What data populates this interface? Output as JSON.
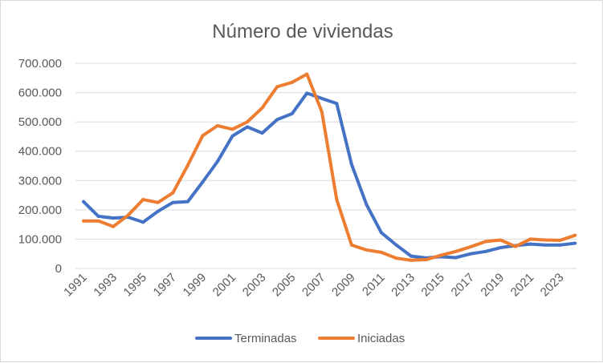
{
  "chart_data": {
    "type": "line",
    "title": "Número de viviendas",
    "xlabel": "",
    "ylabel": "",
    "x": [
      1991,
      1992,
      1993,
      1994,
      1995,
      1996,
      1997,
      1998,
      1999,
      2000,
      2001,
      2002,
      2003,
      2004,
      2005,
      2006,
      2007,
      2008,
      2009,
      2010,
      2011,
      2012,
      2013,
      2014,
      2015,
      2016,
      2017,
      2018,
      2019,
      2020,
      2021,
      2022,
      2023,
      2024
    ],
    "x_tick_labels": [
      "1991",
      "1993",
      "1995",
      "1997",
      "1999",
      "2001",
      "2003",
      "2005",
      "2007",
      "2009",
      "2011",
      "2013",
      "2015",
      "2017",
      "2019",
      "2021",
      "2023"
    ],
    "ylim": [
      0,
      700000
    ],
    "y_ticks": [
      0,
      100000,
      200000,
      300000,
      400000,
      500000,
      600000,
      700000
    ],
    "y_tick_labels": [
      "0",
      "100.000",
      "200.000",
      "300.000",
      "400.000",
      "500.000",
      "600.000",
      "700.000"
    ],
    "grid": true,
    "legend_position": "bottom",
    "series": [
      {
        "name": "Terminadas",
        "color": "#4472c4",
        "values": [
          228000,
          178000,
          172000,
          175000,
          158000,
          195000,
          225000,
          228000,
          295000,
          365000,
          452000,
          483000,
          462000,
          508000,
          528000,
          598000,
          580000,
          563000,
          355000,
          218000,
          122000,
          80000,
          42000,
          36000,
          40000,
          37000,
          50000,
          58000,
          71000,
          78000,
          83000,
          80000,
          80000,
          86000
        ]
      },
      {
        "name": "Iniciadas",
        "color": "#ed7d31",
        "values": [
          162000,
          162000,
          143000,
          182000,
          235000,
          225000,
          258000,
          352000,
          453000,
          487000,
          475000,
          500000,
          548000,
          620000,
          635000,
          663000,
          535000,
          235000,
          80000,
          63000,
          55000,
          35000,
          28000,
          30000,
          45000,
          58000,
          74000,
          92000,
          97000,
          75000,
          100000,
          97000,
          96000,
          113000
        ]
      }
    ]
  }
}
